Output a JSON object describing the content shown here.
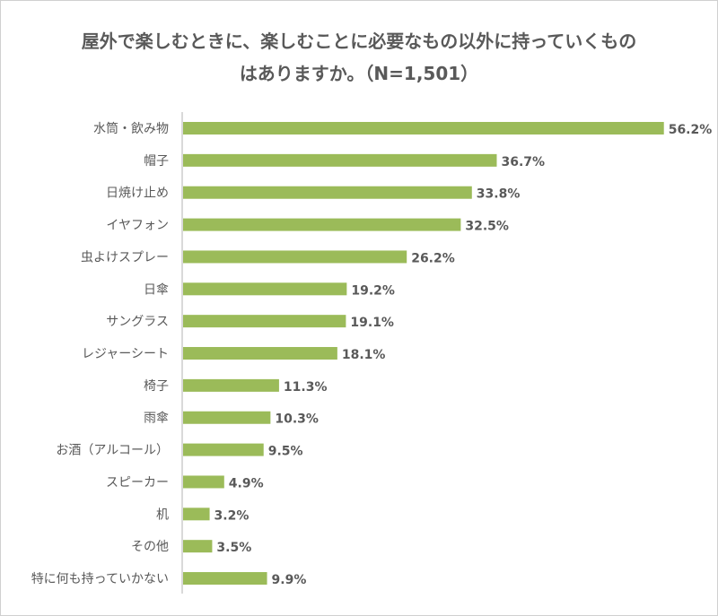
{
  "chart_data": {
    "type": "bar",
    "orientation": "horizontal",
    "title_lines": [
      "屋外で楽しむときに、楽しむことに必要なもの以外に持っていくもの",
      "はありますか。（N=1,501）"
    ],
    "categories": [
      "水筒・飲み物",
      "帽子",
      "日焼け止め",
      "イヤフォン",
      "虫よけスプレー",
      "日傘",
      "サングラス",
      "レジャーシート",
      "椅子",
      "雨傘",
      "お酒（アルコール）",
      "スピーカー",
      "机",
      "その他",
      "特に何も持っていかない"
    ],
    "values": [
      56.2,
      36.7,
      33.8,
      32.5,
      26.2,
      19.2,
      19.1,
      18.1,
      11.3,
      10.3,
      9.5,
      4.9,
      3.2,
      3.5,
      9.9
    ],
    "value_labels": [
      "56.2%",
      "36.7%",
      "33.8%",
      "32.5%",
      "26.2%",
      "19.2%",
      "19.1%",
      "18.1%",
      "11.3%",
      "10.3%",
      "9.5%",
      "4.9%",
      "3.2%",
      "3.5%",
      "9.9%"
    ],
    "unit": "%",
    "xlim": [
      0,
      60
    ],
    "grid": false,
    "legend": "none",
    "colors": {
      "bar": "#9bbb59",
      "text": "#595959",
      "axis": "#d9d9d9"
    }
  }
}
